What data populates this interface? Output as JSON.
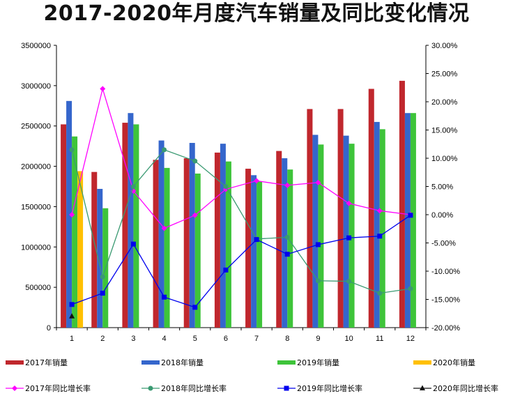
{
  "chart_data": {
    "type": "bar",
    "title": "2017-2020年月度汽车销量及同比变化情况",
    "categories": [
      "1",
      "2",
      "3",
      "4",
      "5",
      "6",
      "7",
      "8",
      "9",
      "10",
      "11",
      "12"
    ],
    "y_left": {
      "min": 0,
      "max": 3500000,
      "step": 500000,
      "ticks": [
        "0",
        "500000",
        "1000000",
        "1500000",
        "2000000",
        "2500000",
        "3000000",
        "3500000"
      ]
    },
    "y_right": {
      "min": -0.2,
      "max": 0.3,
      "step": 0.05,
      "ticks": [
        "-20.00%",
        "-15.00%",
        "-10.00%",
        "-5.00%",
        "0.00%",
        "5.00%",
        "10.00%",
        "15.00%",
        "20.00%",
        "25.00%",
        "30.00%"
      ]
    },
    "bar_series": [
      {
        "name": "2017年销量",
        "color": "#c0272d",
        "values": [
          2520000,
          1930000,
          2540000,
          2080000,
          2100000,
          2170000,
          1970000,
          2190000,
          2710000,
          2710000,
          2960000,
          3060000
        ]
      },
      {
        "name": "2018年销量",
        "color": "#3566cc",
        "values": [
          2810000,
          1720000,
          2660000,
          2320000,
          2290000,
          2280000,
          1890000,
          2100000,
          2390000,
          2380000,
          2550000,
          2660000
        ]
      },
      {
        "name": "2019年销量",
        "color": "#3ec43a",
        "values": [
          2370000,
          1480000,
          2520000,
          1980000,
          1910000,
          2060000,
          1810000,
          1960000,
          2270000,
          2280000,
          2460000,
          2660000
        ]
      },
      {
        "name": "2020年销量",
        "color": "#ffc000",
        "values": [
          1940000,
          null,
          null,
          null,
          null,
          null,
          null,
          null,
          null,
          null,
          null,
          null
        ]
      }
    ],
    "line_series": [
      {
        "name": "2017年同比增长率",
        "color": "#ff00ff",
        "marker": "diamond",
        "values": [
          0.0,
          0.223,
          0.042,
          -0.024,
          -0.001,
          0.045,
          0.06,
          0.052,
          0.057,
          0.02,
          0.007,
          0.0
        ]
      },
      {
        "name": "2018年同比增长率",
        "color": "#3a9a72",
        "marker": "circle",
        "values": [
          0.115,
          -0.11,
          0.05,
          0.115,
          0.095,
          0.05,
          -0.043,
          -0.04,
          -0.117,
          -0.118,
          -0.139,
          -0.131
        ]
      },
      {
        "name": "2019年同比增长率",
        "color": "#0000ee",
        "marker": "square",
        "values": [
          -0.159,
          -0.139,
          -0.052,
          -0.146,
          -0.164,
          -0.098,
          -0.044,
          -0.07,
          -0.053,
          -0.041,
          -0.038,
          -0.001
        ]
      },
      {
        "name": "2020年同比增长率",
        "color": "#111111",
        "marker": "triangle",
        "values": [
          -0.18,
          null,
          null,
          null,
          null,
          null,
          null,
          null,
          null,
          null,
          null,
          null
        ]
      }
    ],
    "legend_position": "bottom",
    "grid": false
  }
}
